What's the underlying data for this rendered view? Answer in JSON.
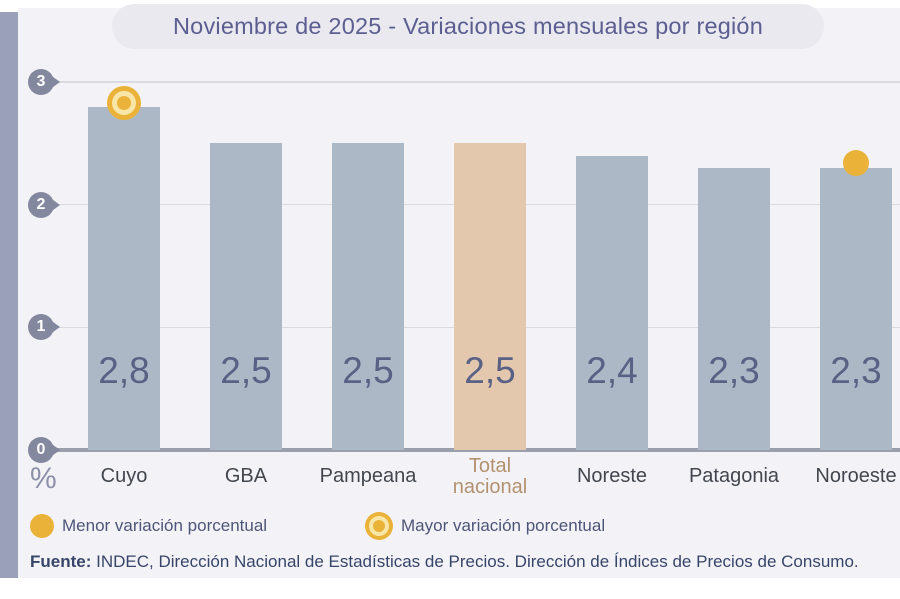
{
  "title": "Noviembre de 2025 - Variaciones mensuales por región",
  "chart_data": {
    "type": "bar",
    "categories": [
      "Cuyo",
      "GBA",
      "Pampeana",
      "Total\nnacional",
      "Noreste",
      "Patagonia",
      "Noroeste"
    ],
    "values": [
      2.8,
      2.5,
      2.5,
      2.5,
      2.4,
      2.3,
      2.3
    ],
    "value_labels": [
      "2,8",
      "2,5",
      "2,5",
      "2,5",
      "2,4",
      "2,3",
      "2,3"
    ],
    "ylabel": "%",
    "yticks": [
      3,
      2,
      1,
      0
    ],
    "ylim": [
      0,
      3
    ],
    "grid": "horizontal",
    "highlight_category": "Total\nnacional",
    "markers": {
      "mayor_category": "Cuyo",
      "menor_category": "Noroeste"
    },
    "colors": {
      "bar": "#adb8c7",
      "highlight_bar": "#e4c8ae",
      "marker": "#eab239",
      "value_text": "#596184",
      "axis_badge": "#84889f"
    }
  },
  "legend": {
    "menor": {
      "label": "Menor variación porcentual",
      "marker": "solid-dot"
    },
    "mayor": {
      "label": "Mayor variación porcentual",
      "marker": "ring-dot"
    }
  },
  "source": {
    "prefix": "Fuente:",
    "text": " INDEC, Dirección Nacional de Estadísticas de Precios. Dirección de Índices de Precios de Consumo."
  }
}
